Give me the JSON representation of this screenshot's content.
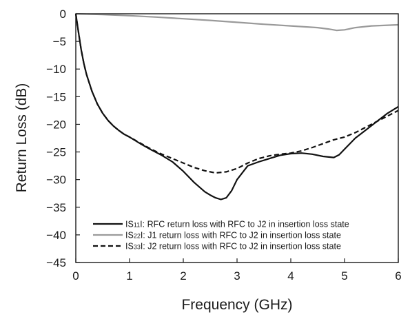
{
  "chart_data": {
    "type": "line",
    "title": "",
    "xlabel": "Frequency (GHz)",
    "ylabel": "Return Loss (dB)",
    "xlim": [
      0,
      6
    ],
    "ylim": [
      -45,
      0
    ],
    "xticks": [
      0,
      1,
      2,
      3,
      4,
      5,
      6
    ],
    "xtick_labels": [
      "0",
      "1",
      "2",
      "3",
      "4",
      "5",
      "6"
    ],
    "yticks": [
      0,
      -5,
      -10,
      -15,
      -20,
      -25,
      -30,
      -35,
      -40,
      -45
    ],
    "ytick_labels": [
      "0",
      "−5",
      "−10",
      "−15",
      "−20",
      "−25",
      "−30",
      "−35",
      "−40",
      "−45"
    ],
    "grid": false,
    "legend_position": "bottom-right",
    "series": [
      {
        "name": "|S11|",
        "legend_label": {
          "prefix": "IS",
          "sub": "11",
          "suffix": "I: RFC return loss with RFC to J2 in insertion loss state"
        },
        "color": "#111111",
        "style": "solid",
        "x": [
          0,
          0.03,
          0.06,
          0.1,
          0.15,
          0.2,
          0.3,
          0.4,
          0.5,
          0.6,
          0.7,
          0.8,
          0.9,
          1.0,
          1.2,
          1.4,
          1.6,
          1.8,
          2.0,
          2.2,
          2.4,
          2.5,
          2.6,
          2.7,
          2.8,
          2.9,
          3.0,
          3.2,
          3.4,
          3.6,
          3.8,
          4.0,
          4.2,
          4.4,
          4.6,
          4.8,
          4.9,
          5.0,
          5.2,
          5.4,
          5.6,
          5.8,
          6.0
        ],
        "y": [
          0,
          -2,
          -4,
          -6.5,
          -9,
          -11,
          -14,
          -16.3,
          -18,
          -19.3,
          -20.3,
          -21.1,
          -21.8,
          -22.3,
          -23.5,
          -24.6,
          -25.6,
          -26.8,
          -28.5,
          -30.5,
          -32.2,
          -32.8,
          -33.3,
          -33.6,
          -33.3,
          -32.0,
          -30.0,
          -27.5,
          -26.8,
          -26.2,
          -25.6,
          -25.3,
          -25.2,
          -25.4,
          -25.8,
          -26.0,
          -25.5,
          -24.5,
          -22.5,
          -21.0,
          -19.5,
          -18.0,
          -16.8
        ]
      },
      {
        "name": "|S22|",
        "legend_label": {
          "prefix": "IS",
          "sub": "22",
          "suffix": "I: J1 return loss with RFC to J2 in insertion loss state"
        },
        "color": "#9a9a9a",
        "style": "solid",
        "x": [
          0,
          0.5,
          1.0,
          1.5,
          2.0,
          2.5,
          3.0,
          3.5,
          4.0,
          4.5,
          4.7,
          4.85,
          5.0,
          5.2,
          5.5,
          6.0
        ],
        "y": [
          0,
          -0.15,
          -0.35,
          -0.6,
          -0.9,
          -1.2,
          -1.55,
          -1.9,
          -2.2,
          -2.5,
          -2.75,
          -3.0,
          -2.9,
          -2.5,
          -2.2,
          -2.0
        ]
      },
      {
        "name": "|S33|",
        "legend_label": {
          "prefix": "IS",
          "sub": "33",
          "suffix": "I: J2 return loss with RFC to J2 in insertion loss state"
        },
        "color": "#111111",
        "style": "dashed",
        "x": [
          0,
          0.03,
          0.06,
          0.1,
          0.15,
          0.2,
          0.3,
          0.4,
          0.5,
          0.6,
          0.7,
          0.8,
          0.9,
          1.0,
          1.2,
          1.4,
          1.6,
          1.8,
          2.0,
          2.2,
          2.4,
          2.6,
          2.8,
          3.0,
          3.2,
          3.4,
          3.6,
          3.8,
          4.0,
          4.2,
          4.4,
          4.6,
          4.8,
          5.0,
          5.2,
          5.4,
          5.6,
          5.8,
          6.0
        ],
        "y": [
          0,
          -2,
          -4,
          -6.5,
          -9,
          -11,
          -14,
          -16.3,
          -18,
          -19.3,
          -20.3,
          -21.1,
          -21.8,
          -22.3,
          -23.4,
          -24.5,
          -25.4,
          -26.2,
          -27.0,
          -27.8,
          -28.4,
          -28.8,
          -28.6,
          -28.0,
          -27.0,
          -26.2,
          -25.7,
          -25.4,
          -25.2,
          -24.8,
          -24.2,
          -23.5,
          -22.8,
          -22.3,
          -21.5,
          -20.5,
          -19.5,
          -18.5,
          -17.5
        ]
      }
    ]
  }
}
